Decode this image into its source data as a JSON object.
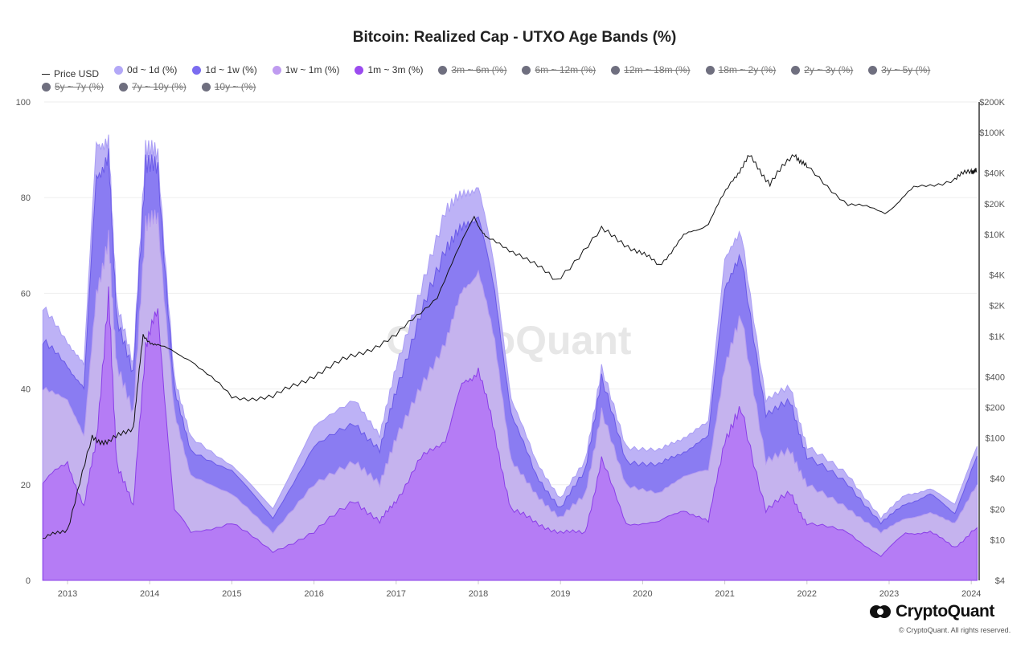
{
  "title": "Bitcoin: Realized Cap - UTXO Age Bands (%)",
  "legend": [
    {
      "label": "Price USD",
      "color": "#222222",
      "active": true,
      "type": "line"
    },
    {
      "label": "0d ~ 1d (%)",
      "color": "#b3a8f7",
      "active": true
    },
    {
      "label": "1d ~ 1w (%)",
      "color": "#7b6cf0",
      "active": true
    },
    {
      "label": "1w ~ 1m (%)",
      "color": "#bf9bf0",
      "active": true
    },
    {
      "label": "1m ~ 3m (%)",
      "color": "#9b4bef",
      "active": true
    },
    {
      "label": "3m ~ 6m (%)",
      "color": "#6f6f7f",
      "active": false
    },
    {
      "label": "6m ~ 12m (%)",
      "color": "#6f6f7f",
      "active": false
    },
    {
      "label": "12m ~ 18m (%)",
      "color": "#6f6f7f",
      "active": false
    },
    {
      "label": "18m ~ 2y (%)",
      "color": "#6f6f7f",
      "active": false
    },
    {
      "label": "2y ~ 3y (%)",
      "color": "#6f6f7f",
      "active": false
    },
    {
      "label": "3y ~ 5y (%)",
      "color": "#6f6f7f",
      "active": false
    },
    {
      "label": "5y ~ 7y (%)",
      "color": "#6f6f7f",
      "active": false
    },
    {
      "label": "7y ~ 10y (%)",
      "color": "#6f6f7f",
      "active": false
    },
    {
      "label": "10y ~ (%)",
      "color": "#6f6f7f",
      "active": false
    }
  ],
  "watermark": "CryptoQuant",
  "brand": "CryptoQuant",
  "copyright": "© CryptoQuant. All rights reserved.",
  "chart_data": {
    "type": "area",
    "stacked": true,
    "xlim": [
      2012.7,
      2024.07
    ],
    "ylim": [
      0,
      100
    ],
    "y2lim": [
      4,
      200000
    ],
    "y2scale": "log",
    "xticks": [
      "2013",
      "2014",
      "2015",
      "2016",
      "2017",
      "2018",
      "2019",
      "2020",
      "2021",
      "2022",
      "2023",
      "2024"
    ],
    "yticks": [
      "0",
      "20",
      "40",
      "60",
      "80",
      "100"
    ],
    "y2ticks": [
      "$4",
      "$10",
      "$20",
      "$40",
      "$100",
      "$200",
      "$400",
      "$1K",
      "$2K",
      "$4K",
      "$10K",
      "$20K",
      "$40K",
      "$100K",
      "$200K"
    ],
    "y2tick_values": [
      4,
      10,
      20,
      40,
      100,
      200,
      400,
      1000,
      2000,
      4000,
      10000,
      20000,
      40000,
      100000,
      200000
    ],
    "grid": true,
    "legend_position": "top",
    "x": [
      2012.7,
      2013.0,
      2013.2,
      2013.35,
      2013.5,
      2013.6,
      2013.8,
      2013.95,
      2014.1,
      2014.3,
      2014.5,
      2015.0,
      2015.5,
      2016.0,
      2016.5,
      2016.8,
      2017.0,
      2017.3,
      2017.6,
      2017.8,
      2018.0,
      2018.2,
      2018.4,
      2018.7,
      2019.0,
      2019.3,
      2019.5,
      2019.8,
      2020.2,
      2020.5,
      2020.8,
      2021.0,
      2021.2,
      2021.5,
      2021.8,
      2022.0,
      2022.5,
      2022.9,
      2023.2,
      2023.5,
      2023.8,
      2024.07
    ],
    "series": [
      {
        "name": "1m ~ 3m (%)",
        "values": [
          20,
          25,
          15,
          30,
          58,
          25,
          15,
          50,
          55,
          15,
          10,
          12,
          6,
          10,
          17,
          12,
          17,
          25,
          30,
          40,
          45,
          30,
          15,
          12,
          10,
          10,
          25,
          12,
          12,
          15,
          12,
          30,
          35,
          15,
          18,
          12,
          10,
          5,
          10,
          10,
          7,
          11
        ]
      },
      {
        "name": "1w ~ 1m (%)",
        "values": [
          20,
          13,
          15,
          30,
          12,
          20,
          20,
          25,
          20,
          20,
          12,
          6,
          4,
          10,
          8,
          8,
          13,
          15,
          20,
          20,
          20,
          20,
          10,
          6,
          3,
          8,
          10,
          8,
          6,
          7,
          11,
          15,
          20,
          10,
          9,
          8,
          5,
          5,
          3,
          4,
          5,
          9
        ]
      },
      {
        "name": "1d ~ 1w (%)",
        "values": [
          10,
          7,
          10,
          25,
          17,
          10,
          8,
          13,
          10,
          5,
          5,
          5,
          3,
          8,
          8,
          7,
          10,
          15,
          20,
          13,
          12,
          10,
          10,
          4,
          2,
          5,
          7,
          5,
          6,
          5,
          7,
          17,
          12,
          10,
          10,
          6,
          5,
          2,
          3,
          4,
          2,
          6
        ]
      },
      {
        "name": "0d ~ 1d (%)",
        "values": [
          7,
          5,
          5,
          7,
          3,
          3,
          2,
          3,
          3,
          2,
          3,
          1,
          2,
          4,
          5,
          3,
          5,
          5,
          8,
          7,
          6,
          5,
          3,
          3,
          2,
          2,
          2,
          3,
          3,
          3,
          3,
          6,
          5,
          3,
          3,
          2,
          2,
          1,
          2,
          1,
          2,
          2
        ]
      }
    ],
    "price": {
      "name": "Price USD",
      "x": [
        2012.7,
        2013.0,
        2013.3,
        2013.5,
        2013.8,
        2013.92,
        2014.1,
        2014.5,
        2015.0,
        2015.5,
        2016.0,
        2016.5,
        2017.0,
        2017.5,
        2017.95,
        2018.1,
        2018.5,
        2018.95,
        2019.5,
        2019.9,
        2020.2,
        2020.5,
        2020.8,
        2021.1,
        2021.3,
        2021.55,
        2021.85,
        2022.0,
        2022.5,
        2022.95,
        2023.3,
        2023.8,
        2024.0,
        2024.07
      ],
      "values": [
        10,
        13,
        100,
        90,
        130,
        1000,
        800,
        600,
        250,
        250,
        420,
        650,
        1000,
        2500,
        15000,
        9000,
        6500,
        3500,
        11000,
        7200,
        5000,
        9500,
        13000,
        35000,
        58000,
        32000,
        62000,
        45000,
        20000,
        16500,
        28000,
        35000,
        43000,
        41000
      ]
    }
  }
}
